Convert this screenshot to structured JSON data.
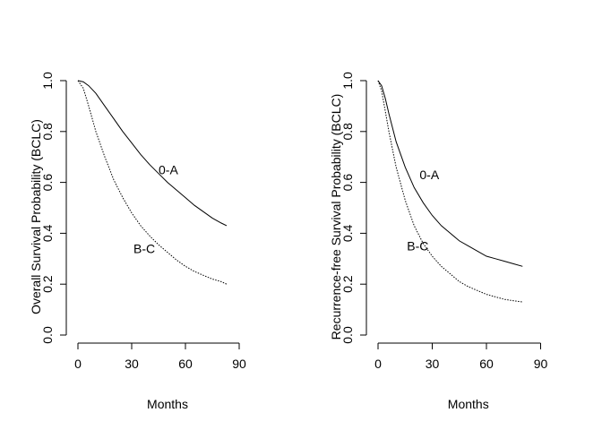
{
  "chart_data": [
    {
      "type": "line",
      "ylabel": "Overall Survival Probability (BCLC)",
      "xlabel": "Months",
      "xlim": [
        0,
        90
      ],
      "ylim": [
        0,
        1
      ],
      "xticks": [
        "0",
        "30",
        "60",
        "90"
      ],
      "yticks": [
        "0.0",
        "0.2",
        "0.4",
        "0.6",
        "0.8",
        "1.0"
      ],
      "series": [
        {
          "name": "0-A",
          "style": "solid",
          "x": [
            0,
            3,
            6,
            10,
            15,
            20,
            25,
            30,
            35,
            40,
            45,
            50,
            55,
            60,
            65,
            70,
            75,
            80,
            83
          ],
          "y": [
            1.0,
            0.995,
            0.98,
            0.95,
            0.9,
            0.85,
            0.8,
            0.755,
            0.71,
            0.67,
            0.635,
            0.6,
            0.57,
            0.54,
            0.51,
            0.485,
            0.46,
            0.44,
            0.43
          ],
          "label_at": [
            45,
            0.65
          ]
        },
        {
          "name": "B-C",
          "style": "dotted",
          "x": [
            0,
            3,
            6,
            10,
            15,
            20,
            25,
            30,
            35,
            40,
            45,
            50,
            55,
            60,
            65,
            70,
            75,
            80,
            83
          ],
          "y": [
            1.0,
            0.97,
            0.9,
            0.8,
            0.7,
            0.61,
            0.54,
            0.48,
            0.43,
            0.39,
            0.355,
            0.325,
            0.295,
            0.27,
            0.25,
            0.235,
            0.22,
            0.21,
            0.2
          ],
          "label_at": [
            31,
            0.34
          ]
        }
      ]
    },
    {
      "type": "line",
      "ylabel": "Recurrence-free Survival Probability (BCLC)",
      "xlabel": "Months",
      "xlim": [
        0,
        90
      ],
      "ylim": [
        0,
        1
      ],
      "xticks": [
        "0",
        "30",
        "60",
        "90"
      ],
      "yticks": [
        "0.0",
        "0.2",
        "0.4",
        "0.6",
        "0.8",
        "1.0"
      ],
      "series": [
        {
          "name": "0-A",
          "style": "solid",
          "x": [
            0,
            2,
            4,
            6,
            10,
            15,
            20,
            25,
            30,
            35,
            40,
            45,
            50,
            55,
            60,
            65,
            70,
            75,
            80
          ],
          "y": [
            1.0,
            0.98,
            0.93,
            0.87,
            0.76,
            0.66,
            0.58,
            0.52,
            0.47,
            0.43,
            0.4,
            0.37,
            0.35,
            0.33,
            0.31,
            0.3,
            0.29,
            0.28,
            0.27
          ],
          "label_at": [
            23,
            0.63
          ]
        },
        {
          "name": "B-C",
          "style": "dotted",
          "x": [
            0,
            2,
            4,
            6,
            10,
            15,
            20,
            25,
            30,
            35,
            40,
            45,
            50,
            55,
            60,
            65,
            70,
            75,
            80
          ],
          "y": [
            1.0,
            0.96,
            0.88,
            0.8,
            0.66,
            0.53,
            0.43,
            0.36,
            0.31,
            0.27,
            0.24,
            0.21,
            0.19,
            0.175,
            0.16,
            0.15,
            0.14,
            0.135,
            0.13
          ],
          "label_at": [
            16,
            0.35
          ]
        }
      ]
    }
  ]
}
